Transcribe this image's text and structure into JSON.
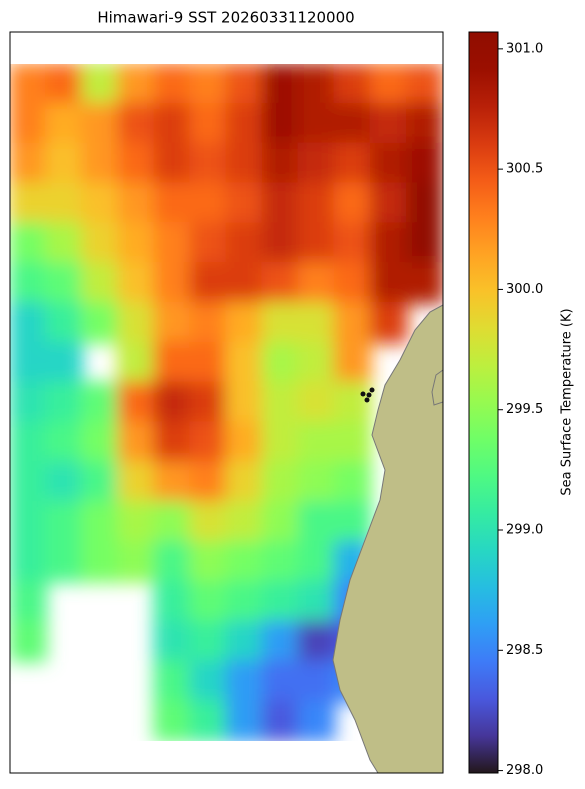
{
  "chart_data": {
    "type": "heatmap",
    "title": "Himawari-9 SST 20260331120000",
    "colorbar_label": "Sea Surface Temperature (K)",
    "colormap": "turbo",
    "clim": [
      297.99,
      301.07
    ],
    "cticks": [
      {
        "value": 298,
        "label": "298.0"
      },
      298.5,
      {
        "value": 299,
        "label": "299.0"
      },
      299.5,
      {
        "value": 300,
        "label": "300.0"
      },
      300.5,
      {
        "value": 301,
        "label": "301.0"
      }
    ],
    "values": [
      [
        300.3,
        300.4,
        299.7,
        300.2,
        300.4,
        300.3,
        300.5,
        300.9,
        300.8,
        300.6,
        300.4,
        300.5
      ],
      [
        300.3,
        300.1,
        300.2,
        300.5,
        300.6,
        300.4,
        300.6,
        300.9,
        300.8,
        300.8,
        300.7,
        300.8
      ],
      [
        300.2,
        300.0,
        300.2,
        300.4,
        300.6,
        300.5,
        300.6,
        300.8,
        300.7,
        300.6,
        300.8,
        300.9
      ],
      [
        299.9,
        299.9,
        300.0,
        300.2,
        300.4,
        300.4,
        300.5,
        300.7,
        300.6,
        300.4,
        300.7,
        301.0
      ],
      [
        299.4,
        299.6,
        299.9,
        300.1,
        300.3,
        300.5,
        300.6,
        300.7,
        300.6,
        300.5,
        300.8,
        301.0
      ],
      [
        299.2,
        299.3,
        299.7,
        300.0,
        300.3,
        300.6,
        300.6,
        300.5,
        300.3,
        300.4,
        300.8,
        300.8
      ],
      [
        298.9,
        299.1,
        299.4,
        299.8,
        300.2,
        300.3,
        300.1,
        299.8,
        299.8,
        300.2,
        300.6,
        null
      ],
      [
        298.9,
        298.9,
        null,
        299.7,
        300.4,
        300.4,
        300.0,
        299.6,
        299.7,
        300.2,
        null,
        null
      ],
      [
        299.0,
        299.1,
        299.3,
        300.4,
        300.7,
        300.6,
        300.0,
        299.7,
        299.8,
        299.7,
        null,
        null
      ],
      [
        299.1,
        299.2,
        299.4,
        300.2,
        300.6,
        300.5,
        300.1,
        299.7,
        299.6,
        299.6,
        null,
        null
      ],
      [
        299.1,
        299.0,
        299.2,
        299.9,
        300.2,
        300.3,
        299.9,
        299.6,
        299.5,
        299.4,
        null,
        null
      ],
      [
        299.1,
        299.2,
        299.4,
        299.6,
        299.5,
        299.8,
        299.7,
        299.5,
        299.2,
        299.2,
        null,
        null
      ],
      [
        299.1,
        299.2,
        299.4,
        299.5,
        299.2,
        299.5,
        299.4,
        299.3,
        299.2,
        298.7,
        null,
        null
      ],
      [
        299.2,
        null,
        null,
        null,
        299.1,
        299.3,
        299.2,
        299.1,
        299.0,
        298.5,
        null,
        null
      ],
      [
        299.3,
        null,
        null,
        null,
        299.0,
        299.1,
        298.9,
        298.6,
        298.2,
        298.3,
        null,
        null
      ],
      [
        null,
        null,
        null,
        null,
        299.2,
        298.9,
        298.6,
        298.4,
        298.4,
        298.5,
        null,
        null
      ],
      [
        null,
        null,
        null,
        null,
        299.3,
        299.1,
        298.6,
        298.3,
        298.5,
        null,
        null,
        null
      ]
    ]
  }
}
